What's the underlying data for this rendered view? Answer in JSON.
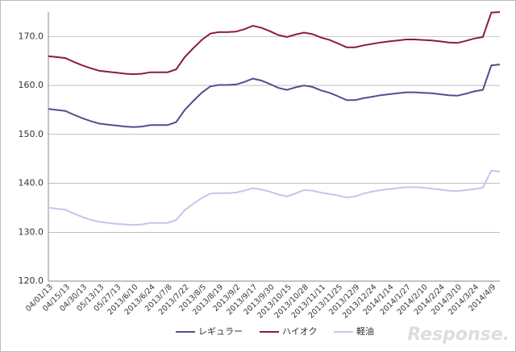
{
  "chart_data": {
    "type": "line",
    "categories": [
      "04/01/13",
      null,
      "04/15/13",
      null,
      "04/30/13",
      null,
      "05/13/13",
      null,
      "05/27/13",
      null,
      "2013/6/10",
      null,
      "2013/6/24",
      null,
      "2013/7/8",
      null,
      "2013/7/22",
      null,
      "2013/8/5",
      null,
      "2013/8/19",
      null,
      "2013/9/2",
      null,
      "2013/9/17",
      null,
      "2013/9/30",
      null,
      "2013/10/15",
      null,
      "2013/10/28",
      null,
      "2013/11/11",
      null,
      "2013/11/25",
      null,
      "2013/12/9",
      null,
      "2013/12/24",
      null,
      "2014/1/14",
      null,
      "2014/1/27",
      null,
      "2014/2/10",
      null,
      "2014/2/24",
      null,
      "2014/3/10",
      null,
      "2014/3/24",
      null,
      "2014/4/9",
      null
    ],
    "series": [
      {
        "name": "レギュラー",
        "color": "#4f4f8f",
        "values": [
          155.2,
          155.0,
          154.8,
          154.0,
          153.3,
          152.7,
          152.2,
          152.0,
          151.8,
          151.6,
          151.5,
          151.6,
          151.9,
          151.9,
          151.9,
          152.5,
          155.0,
          156.8,
          158.5,
          159.8,
          160.1,
          160.1,
          160.2,
          160.7,
          161.4,
          161.0,
          160.3,
          159.5,
          159.1,
          159.6,
          160.0,
          159.7,
          159.0,
          158.5,
          157.8,
          157.0,
          157.0,
          157.4,
          157.7,
          158.0,
          158.2,
          158.4,
          158.6,
          158.6,
          158.5,
          158.4,
          158.2,
          158.0,
          157.9,
          158.3,
          158.8,
          159.1,
          164.1,
          164.3
        ]
      },
      {
        "name": "ハイオク",
        "color": "#8b1a4a",
        "values": [
          166.0,
          165.8,
          165.6,
          164.8,
          164.1,
          163.5,
          163.0,
          162.8,
          162.6,
          162.4,
          162.3,
          162.4,
          162.7,
          162.7,
          162.7,
          163.3,
          165.8,
          167.6,
          169.3,
          170.6,
          170.9,
          170.9,
          171.0,
          171.5,
          172.2,
          171.8,
          171.1,
          170.3,
          169.9,
          170.4,
          170.8,
          170.5,
          169.8,
          169.3,
          168.6,
          167.8,
          167.8,
          168.2,
          168.5,
          168.8,
          169.0,
          169.2,
          169.4,
          169.4,
          169.3,
          169.2,
          169.0,
          168.8,
          168.7,
          169.1,
          169.6,
          169.9,
          174.9,
          175.0
        ]
      },
      {
        "name": "軽油",
        "color": "#c4c4ee",
        "values": [
          135.0,
          134.8,
          134.6,
          133.8,
          133.1,
          132.5,
          132.1,
          131.9,
          131.7,
          131.6,
          131.5,
          131.6,
          131.9,
          131.9,
          131.9,
          132.5,
          134.5,
          135.8,
          137.0,
          137.9,
          138.0,
          138.0,
          138.1,
          138.5,
          139.0,
          138.7,
          138.3,
          137.7,
          137.3,
          137.9,
          138.6,
          138.5,
          138.1,
          137.8,
          137.5,
          137.1,
          137.3,
          137.9,
          138.3,
          138.6,
          138.8,
          139.0,
          139.2,
          139.2,
          139.1,
          138.9,
          138.7,
          138.5,
          138.4,
          138.6,
          138.8,
          139.1,
          142.6,
          142.4
        ]
      }
    ],
    "ylim": [
      120,
      175
    ],
    "yticks": [
      {
        "value": 120,
        "label": "120.0"
      },
      {
        "value": 130,
        "label": "130.0"
      },
      {
        "value": 140,
        "label": "140.0"
      },
      {
        "value": 150,
        "label": "150.0"
      },
      {
        "value": 160,
        "label": "160.0"
      },
      {
        "value": 170,
        "label": "170.0"
      }
    ],
    "grid": true,
    "legend": "bottom",
    "watermark": "Response."
  }
}
